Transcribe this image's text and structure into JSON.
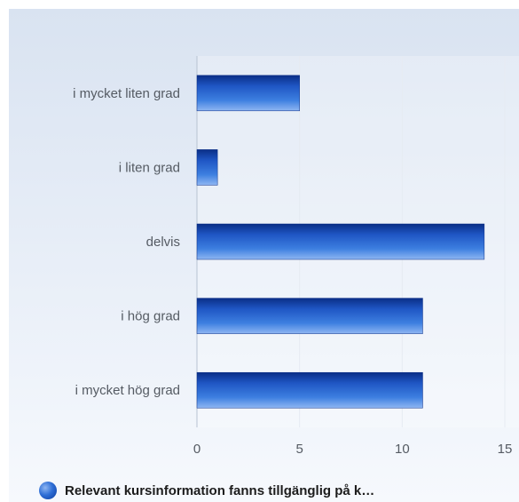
{
  "chart_data": {
    "type": "bar",
    "orientation": "horizontal",
    "categories": [
      "i mycket liten grad",
      "i liten grad",
      "delvis",
      "i hög grad",
      "i mycket hög grad"
    ],
    "series": [
      {
        "name": "Relevant kursinformation fanns tillgänglig på k…",
        "values": [
          5,
          1,
          14,
          11,
          11
        ]
      }
    ],
    "xlim": [
      0,
      15
    ],
    "xticks": [
      0,
      5,
      10,
      15
    ],
    "grid": true,
    "legend_position": "bottom-left",
    "colors": {
      "bar_dark": "#0a2e86",
      "bar_mid": "#2f6fd6",
      "bar_light": "#8fb6f2",
      "grid": "#e6ebf2",
      "axis": "#b8c3d2"
    }
  }
}
